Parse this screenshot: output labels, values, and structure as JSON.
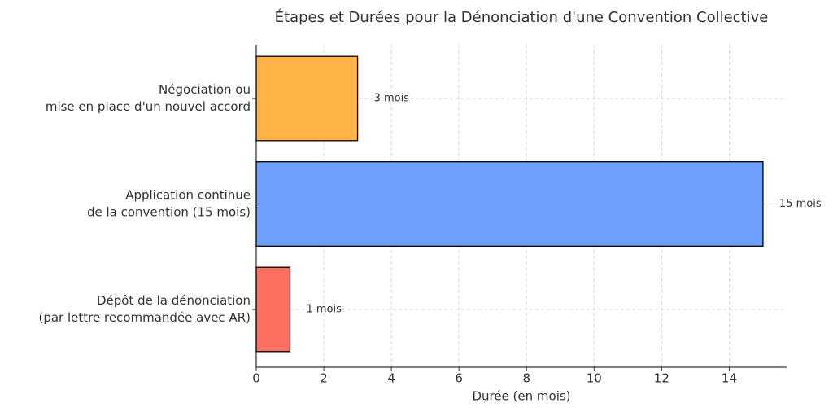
{
  "chart_data": {
    "type": "barh",
    "title": "Étapes et Durées pour la Dénonciation d'une Convention Collective",
    "x_label": "Durée (en mois)",
    "categories": [
      [
        "Dépôt de la dénonciation",
        "(par lettre recommandée avec AR)"
      ],
      [
        "Application continue",
        "de la convention (15 mois)"
      ],
      [
        "Négociation ou",
        "mise en place d'un nouvel accord"
      ]
    ],
    "values": [
      1,
      15,
      3
    ],
    "value_labels": [
      "1 mois",
      "15 mois",
      "3 mois"
    ],
    "colors": [
      "#ff6f61",
      "#6fa0ff",
      "#ffb347"
    ],
    "xlim": [
      0,
      15.7
    ],
    "xticks": [
      0,
      2,
      4,
      6,
      8,
      10,
      12,
      14
    ],
    "grid": true
  }
}
